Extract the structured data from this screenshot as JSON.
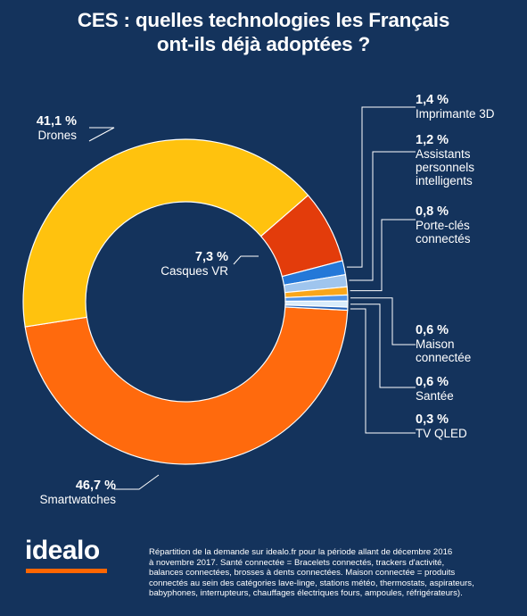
{
  "title_line1": "CES : quelles technologies les Français",
  "title_line2": "ont-ils déjà adoptées ?",
  "chart_data": {
    "type": "pie",
    "variant": "donut",
    "slices": [
      {
        "label": "Smartwatches",
        "value_label": "46,7 %",
        "value": 46.7,
        "color": "#ff6a0d"
      },
      {
        "label": "Drones",
        "value_label": "41,1 %",
        "value": 41.1,
        "color": "#ffc20e"
      },
      {
        "label": "Casques VR",
        "value_label": "7,3 %",
        "value": 7.3,
        "color": "#e33c0b"
      },
      {
        "label": "Imprimante 3D",
        "value_label": "1,4 %",
        "value": 1.4,
        "color": "#2478d8"
      },
      {
        "label": "Assistants personnels intelligents",
        "label_lines": [
          "Assistants",
          "personnels",
          "intelligents"
        ],
        "value_label": "1,2 %",
        "value": 1.2,
        "color": "#9fc5ee"
      },
      {
        "label": "Porte-clés connectés",
        "label_lines": [
          "Porte-clés",
          "connectés"
        ],
        "value_label": "0,8 %",
        "value": 0.8,
        "color": "#f9a61a"
      },
      {
        "label": "Maison connectée",
        "label_lines": [
          "Maison",
          "connectée"
        ],
        "value_label": "0,6 %",
        "value": 0.6,
        "color": "#4f93e6"
      },
      {
        "label": "Santée",
        "value_label": "0,6 %",
        "value": 0.6,
        "color": "#d9ecfb"
      },
      {
        "label": "TV QLED",
        "value_label": "0,3 %",
        "value": 0.3,
        "color": "#2160b8"
      }
    ]
  },
  "footer": {
    "logo": "idealo",
    "logo_color": "#ff6600",
    "note_lines": [
      "Répartition de la demande sur idealo.fr pour la période allant de décembre 2016",
      "à novembre 2017. Santé connectée = Bracelets connectés, trackers d'activité,",
      "balances connectées, brosses à dents connectées. Maison connectée = produits",
      "connectés au sein des catégories lave-linge, stations météo, thermostats, aspirateurs,",
      "babyphones, interrupteurs, chauffages électriques fours, ampoules, réfrigérateurs)."
    ]
  },
  "colors": {
    "background": "#14335c",
    "text": "#ffffff",
    "leader_line": "#ffffff"
  }
}
